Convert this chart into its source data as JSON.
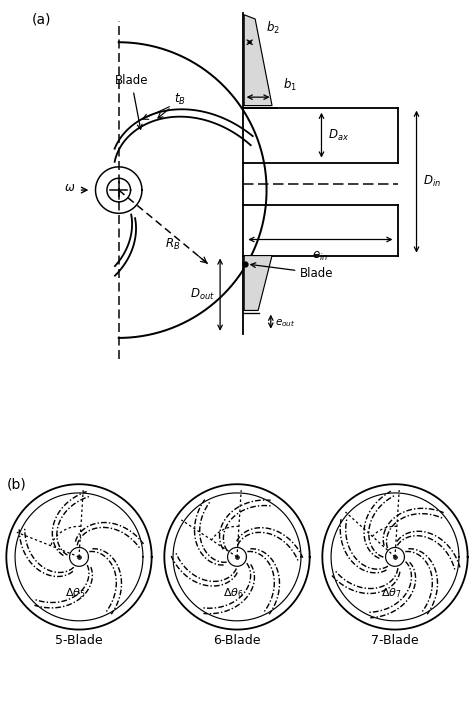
{
  "bg_color": "#ffffff",
  "line_color": "#000000",
  "gray_fill": "#d8d8d8",
  "blade_counts": [
    5,
    6,
    7
  ],
  "n_blade_labels": [
    "5-Blade",
    "6-Blade",
    "7-Blade"
  ]
}
